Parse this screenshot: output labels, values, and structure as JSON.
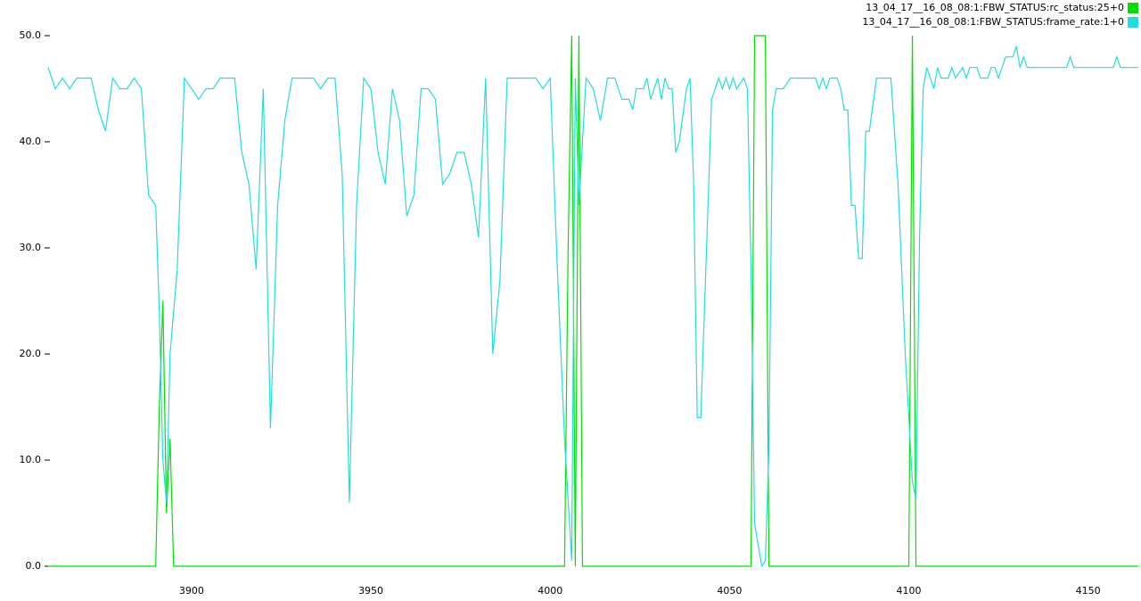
{
  "chart_data": {
    "type": "line",
    "xlim": [
      3860,
      4164
    ],
    "ylim": [
      0,
      50
    ],
    "xticks": [
      3900,
      3950,
      4000,
      4050,
      4100,
      4150
    ],
    "yticks": [
      {
        "value": 0,
        "label": "0.0"
      },
      {
        "value": 10,
        "label": "10.0"
      },
      {
        "value": 20,
        "label": "20.0"
      },
      {
        "value": 30,
        "label": "30.0"
      },
      {
        "value": 40,
        "label": "40.0"
      },
      {
        "value": 50,
        "label": "50.0"
      }
    ],
    "grid": false,
    "legend": "top-right",
    "series": [
      {
        "name": "13_04_17__16_08_08:1:FBW_STATUS:rc_status:25+0",
        "color": "#00e000",
        "x": [
          3860,
          3890,
          3891,
          3892,
          3893,
          3894,
          3895,
          4004,
          4005,
          4006,
          4007,
          4008,
          4009,
          4056,
          4057,
          4060,
          4061,
          4100,
          4101,
          4102,
          4164
        ],
        "values": [
          0,
          0,
          15,
          25,
          5,
          12,
          0,
          0,
          30,
          50,
          0,
          50,
          0,
          0,
          50,
          50,
          0,
          0,
          50,
          0,
          0
        ]
      },
      {
        "name": "13_04_17__16_08_08:1:FBW_STATUS:frame_rate:1+0",
        "color": "#22dddd",
        "x": [
          3860,
          3862,
          3864,
          3866,
          3868,
          3872,
          3874,
          3876,
          3878,
          3880,
          3882,
          3884,
          3886,
          3888,
          3890,
          3891,
          3892,
          3893,
          3894,
          3896,
          3898,
          3902,
          3904,
          3906,
          3908,
          3912,
          3914,
          3916,
          3918,
          3920,
          3922,
          3924,
          3926,
          3928,
          3934,
          3936,
          3938,
          3940,
          3942,
          3944,
          3946,
          3948,
          3950,
          3952,
          3954,
          3956,
          3958,
          3960,
          3962,
          3964,
          3966,
          3968,
          3970,
          3972,
          3974,
          3976,
          3978,
          3980,
          3982,
          3984,
          3986,
          3988,
          3996,
          3998,
          4000,
          4002,
          4004,
          4006,
          4007,
          4008,
          4010,
          4012,
          4014,
          4016,
          4018,
          4020,
          4022,
          4023,
          4024,
          4026,
          4027,
          4028,
          4029,
          4030,
          4031,
          4032,
          4033,
          4034,
          4035,
          4036,
          4038,
          4039,
          4040,
          4041,
          4042,
          4044,
          4045,
          4047,
          4048,
          4049,
          4050,
          4051,
          4052,
          4054,
          4055,
          4056,
          4057,
          4059,
          4060,
          4061,
          4062,
          4063,
          4065,
          4067,
          4074,
          4075,
          4076,
          4077,
          4078,
          4080,
          4081,
          4082,
          4083,
          4084,
          4085,
          4086,
          4087,
          4088,
          4089,
          4091,
          4095,
          4097,
          4099,
          4101,
          4102,
          4103,
          4104,
          4105,
          4107,
          4108,
          4109,
          4111,
          4112,
          4113,
          4115,
          4116,
          4117,
          4119,
          4120,
          4122,
          4123,
          4124,
          4125,
          4127,
          4129,
          4130,
          4131,
          4132,
          4133,
          4144,
          4145,
          4146,
          4157,
          4158,
          4159,
          4164
        ],
        "values": [
          47,
          45,
          46,
          45,
          46,
          46,
          43,
          41,
          46,
          45,
          45,
          46,
          45,
          35,
          34,
          24,
          10,
          6,
          20,
          28,
          46,
          44,
          45,
          45,
          46,
          46,
          39,
          36,
          28,
          45,
          13,
          34,
          42,
          46,
          46,
          45,
          46,
          46,
          37,
          6,
          34,
          46,
          45,
          39,
          36,
          45,
          42,
          33,
          35,
          45,
          45,
          44,
          36,
          37,
          39,
          39,
          36,
          31,
          46,
          20,
          27,
          46,
          46,
          45,
          46,
          28,
          12,
          0.5,
          46,
          34,
          46,
          45,
          42,
          46,
          46,
          44,
          44,
          43,
          45,
          45,
          46,
          44,
          45,
          46,
          44,
          46,
          45,
          45,
          39,
          40,
          45,
          46,
          36,
          14,
          14,
          34,
          44,
          46,
          45,
          46,
          45,
          46,
          45,
          46,
          45,
          28,
          4,
          0,
          0.5,
          11,
          43,
          45,
          45,
          46,
          46,
          45,
          46,
          45,
          46,
          46,
          45,
          43,
          43,
          34,
          34,
          29,
          29,
          41,
          41,
          46,
          46,
          36,
          20,
          8,
          6.3,
          31,
          45,
          47,
          45,
          47,
          46,
          46,
          47,
          46,
          47,
          46,
          47,
          47,
          46,
          46,
          47,
          47,
          46,
          48,
          48,
          49,
          47,
          48,
          47,
          47,
          48,
          47,
          47,
          48,
          47,
          47
        ]
      }
    ]
  }
}
